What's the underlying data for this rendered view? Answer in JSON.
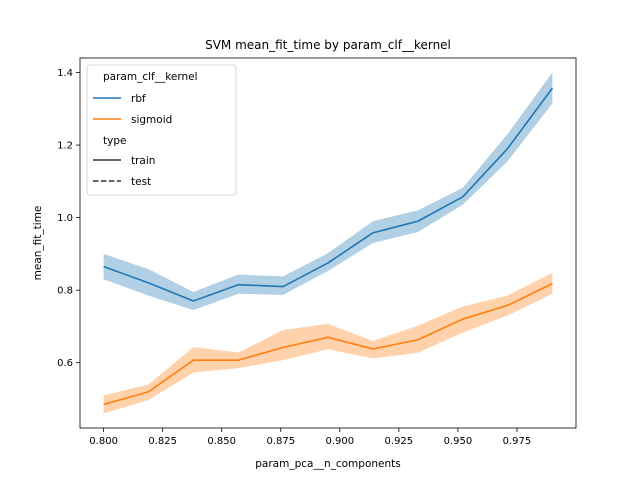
{
  "chart_data": {
    "type": "line",
    "title": "SVM mean_fit_time by param_clf__kernel",
    "xlabel": "param_pca__n_components",
    "ylabel": "mean_fit_time",
    "xlim": [
      0.79,
      1.0
    ],
    "ylim": [
      0.42,
      1.44
    ],
    "xticks": [
      "0.800",
      "0.825",
      "0.850",
      "0.875",
      "0.900",
      "0.925",
      "0.950",
      "0.975"
    ],
    "xtick_values": [
      0.8,
      0.825,
      0.85,
      0.875,
      0.9,
      0.925,
      0.95,
      0.975
    ],
    "yticks": [
      "0.6",
      "0.8",
      "1.0",
      "1.2",
      "1.4"
    ],
    "ytick_values": [
      0.6,
      0.8,
      1.0,
      1.2,
      1.4
    ],
    "grid": false,
    "legend_placement": "top-left",
    "x": [
      0.8,
      0.819,
      0.838,
      0.857,
      0.876,
      0.895,
      0.914,
      0.933,
      0.952,
      0.971,
      0.99
    ],
    "series": [
      {
        "name": "rbf",
        "color": "#1f77b4",
        "values": [
          0.865,
          0.82,
          0.77,
          0.815,
          0.81,
          0.875,
          0.958,
          0.99,
          1.057,
          1.19,
          1.357
        ],
        "lower": [
          0.83,
          0.785,
          0.745,
          0.79,
          0.787,
          0.853,
          0.93,
          0.96,
          1.035,
          1.155,
          1.315
        ],
        "upper": [
          0.9,
          0.858,
          0.795,
          0.843,
          0.838,
          0.902,
          0.99,
          1.02,
          1.082,
          1.23,
          1.4
        ]
      },
      {
        "name": "sigmoid",
        "color": "#ff7f0e",
        "values": [
          0.485,
          0.52,
          0.607,
          0.607,
          0.642,
          0.67,
          0.638,
          0.663,
          0.72,
          0.758,
          0.818
        ],
        "lower": [
          0.46,
          0.497,
          0.573,
          0.585,
          0.607,
          0.637,
          0.612,
          0.627,
          0.683,
          0.73,
          0.79
        ],
        "upper": [
          0.51,
          0.54,
          0.643,
          0.628,
          0.69,
          0.707,
          0.66,
          0.702,
          0.755,
          0.785,
          0.848
        ]
      }
    ],
    "legend": {
      "hue_title": "param_clf__kernel",
      "hue_entries": [
        "rbf",
        "sigmoid"
      ],
      "style_title": "type",
      "style_entries": [
        "train",
        "test"
      ]
    }
  }
}
